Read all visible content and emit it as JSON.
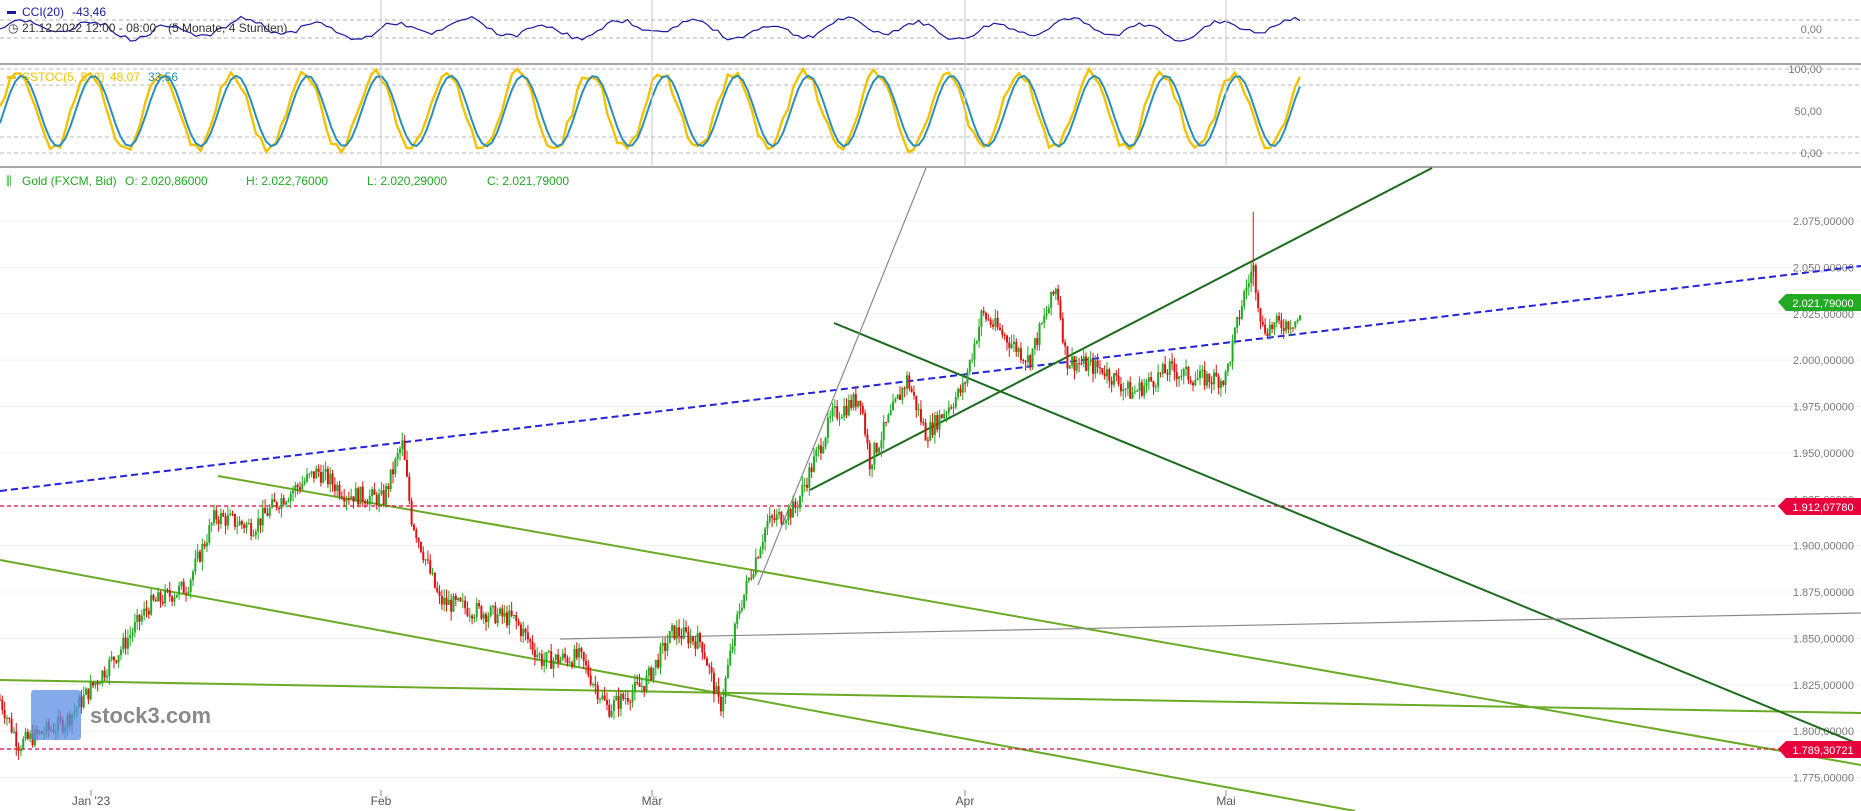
{
  "cci": {
    "label": "CCI(20)",
    "value": "-43,46",
    "period": "21.12.2022 12:00 - 08:00",
    "duration": "(5 Monate, 4 Stunden)",
    "ticks": [
      "0,00"
    ]
  },
  "sstoc": {
    "label": "SSTOC(5, 5, 3)",
    "k_value": "48,07",
    "d_value": "33,56",
    "ticks": [
      "100,00",
      "50,00",
      "0,00"
    ]
  },
  "main": {
    "title": "Gold (FXCM, Bid)",
    "open": "O: 2.020,86000",
    "high": "H: 2.022,76000",
    "low": "L: 2.020,29000",
    "close": "C: 2.021,79000",
    "price_tag": "2.021,79000",
    "level_high": "1.912,07780",
    "level_low": "1.789,30721",
    "watermark": "stock3.com"
  },
  "colors": {
    "up": "#22aa22",
    "down": "#dd1111",
    "cci_line": "#1a1aa0",
    "stoc_k": "#f2c200",
    "stoc_d": "#2a8fb8",
    "trend_green": "#6aab25",
    "trend_dark": "#1a6b1a",
    "trend_blue": "#2222dd",
    "level_red": "#e8003d"
  },
  "chart_data": {
    "type": "candlestick",
    "title": "Gold (FXCM, Bid)",
    "y_axis_ticks": [
      "1.775,00000",
      "1.800,00000",
      "1.825,00000",
      "1.850,00000",
      "1.875,00000",
      "1.900,00000",
      "1.925,00000",
      "1.950,00000",
      "1.975,00000",
      "2.000,00000",
      "2.025,00000",
      "2.050,00000",
      "2.075,00000"
    ],
    "x_axis_labels": [
      "Jan '23",
      "Feb",
      "Mär",
      "Apr",
      "Mai"
    ],
    "ylim": [
      1765,
      2090
    ],
    "price_path": [
      {
        "date": "2022-12-21",
        "price": 1817
      },
      {
        "date": "2022-12-23",
        "price": 1793
      },
      {
        "date": "2022-12-28",
        "price": 1805
      },
      {
        "date": "2023-01-03",
        "price": 1845
      },
      {
        "date": "2023-01-06",
        "price": 1868
      },
      {
        "date": "2023-01-10",
        "price": 1878
      },
      {
        "date": "2023-01-13",
        "price": 1916
      },
      {
        "date": "2023-01-17",
        "price": 1910
      },
      {
        "date": "2023-01-20",
        "price": 1925
      },
      {
        "date": "2023-01-24",
        "price": 1940
      },
      {
        "date": "2023-01-27",
        "price": 1928
      },
      {
        "date": "2023-01-31",
        "price": 1925
      },
      {
        "date": "2023-02-02",
        "price": 1955
      },
      {
        "date": "2023-02-03",
        "price": 1915
      },
      {
        "date": "2023-02-06",
        "price": 1870
      },
      {
        "date": "2023-02-10",
        "price": 1865
      },
      {
        "date": "2023-02-14",
        "price": 1860
      },
      {
        "date": "2023-02-17",
        "price": 1838
      },
      {
        "date": "2023-02-21",
        "price": 1840
      },
      {
        "date": "2023-02-24",
        "price": 1812
      },
      {
        "date": "2023-02-28",
        "price": 1826
      },
      {
        "date": "2023-03-03",
        "price": 1854
      },
      {
        "date": "2023-03-06",
        "price": 1848
      },
      {
        "date": "2023-03-08",
        "price": 1812
      },
      {
        "date": "2023-03-10",
        "price": 1865
      },
      {
        "date": "2023-03-13",
        "price": 1912
      },
      {
        "date": "2023-03-16",
        "price": 1920
      },
      {
        "date": "2023-03-20",
        "price": 1970
      },
      {
        "date": "2023-03-23",
        "price": 1980
      },
      {
        "date": "2023-03-24",
        "price": 1945
      },
      {
        "date": "2023-03-28",
        "price": 1990
      },
      {
        "date": "2023-03-30",
        "price": 1960
      },
      {
        "date": "2023-04-03",
        "price": 1985
      },
      {
        "date": "2023-04-05",
        "price": 2025
      },
      {
        "date": "2023-04-10",
        "price": 2000
      },
      {
        "date": "2023-04-13",
        "price": 2040
      },
      {
        "date": "2023-04-14",
        "price": 2000
      },
      {
        "date": "2023-04-18",
        "price": 1995
      },
      {
        "date": "2023-04-21",
        "price": 1982
      },
      {
        "date": "2023-04-25",
        "price": 1995
      },
      {
        "date": "2023-04-28",
        "price": 1990
      },
      {
        "date": "2023-05-01",
        "price": 1990
      },
      {
        "date": "2023-05-03",
        "price": 2035
      },
      {
        "date": "2023-05-04",
        "price": 2050
      },
      {
        "date": "2023-05-05",
        "price": 2017
      },
      {
        "date": "2023-05-09",
        "price": 2022
      }
    ],
    "horizontal_levels": [
      1912.0778,
      1789.30721
    ],
    "last_price": 2021.79
  }
}
